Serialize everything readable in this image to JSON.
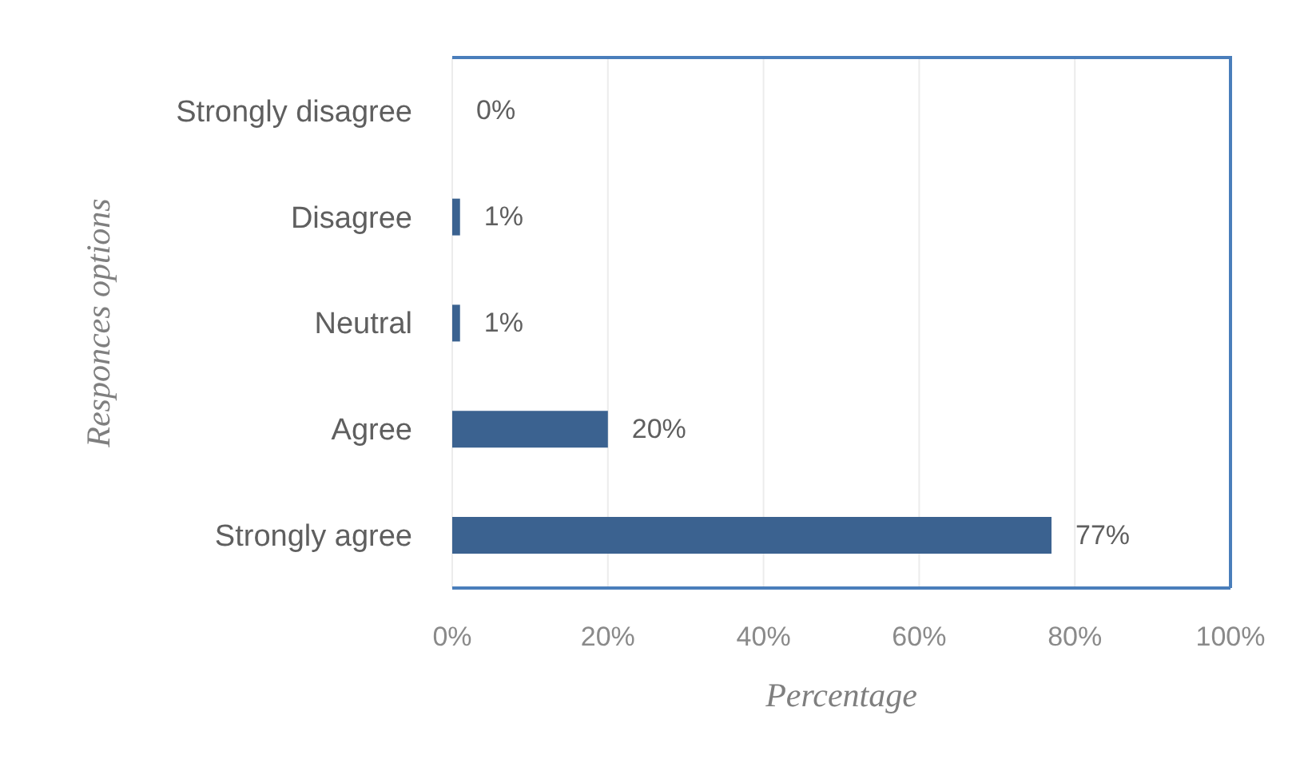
{
  "chart_data": {
    "type": "bar",
    "orientation": "horizontal",
    "xlabel": "Percentage",
    "ylabel": "Responces options",
    "categories": [
      "Strongly disagree",
      "Disagree",
      "Neutral",
      "Agree",
      "Strongly agree"
    ],
    "values": [
      0,
      1,
      1,
      20,
      77
    ],
    "value_labels": [
      "0%",
      "1%",
      "1%",
      "20%",
      "77%"
    ],
    "color": "#3b6290",
    "xlim": [
      0,
      100
    ],
    "xticks": [
      {
        "value": 0,
        "label": "0%"
      },
      {
        "value": 20,
        "label": "20%"
      },
      {
        "value": 40,
        "label": "40%"
      },
      {
        "value": 60,
        "label": "60%"
      },
      {
        "value": 80,
        "label": "80%"
      },
      {
        "value": 100,
        "label": "100%"
      }
    ],
    "grid": "x"
  }
}
